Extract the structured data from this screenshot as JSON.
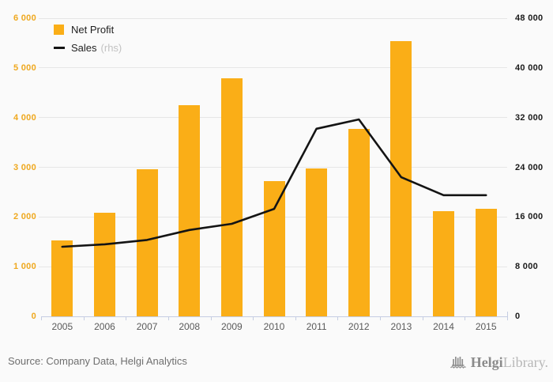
{
  "chart_data": {
    "type": "bar",
    "title": "",
    "categories": [
      "2005",
      "2006",
      "2007",
      "2008",
      "2009",
      "2010",
      "2011",
      "2012",
      "2013",
      "2014",
      "2015"
    ],
    "series": [
      {
        "name": "Net Profit",
        "type": "bar",
        "axis": "left",
        "color": "#FAAE17",
        "axis_note": "",
        "values": [
          1530,
          2080,
          2960,
          4250,
          4790,
          2720,
          2980,
          3770,
          5540,
          2120,
          2160
        ]
      },
      {
        "name": "Sales",
        "type": "line",
        "axis": "right",
        "color": "#141414",
        "axis_note": "(rhs)",
        "values": [
          11200,
          11600,
          12300,
          13900,
          14900,
          17300,
          30200,
          31700,
          22400,
          19500,
          19500
        ]
      }
    ],
    "left_axis": {
      "min": 0,
      "max": 6000,
      "label_color": "#EFA81E",
      "ticks": [
        "0",
        "1 000",
        "2 000",
        "3 000",
        "4 000",
        "5 000",
        "6 000"
      ]
    },
    "right_axis": {
      "min": 0,
      "max": 48000,
      "label_color": "#1a1a1a",
      "ticks": [
        "0",
        "8 000",
        "16 000",
        "24 000",
        "32 000",
        "40 000",
        "48 000"
      ]
    },
    "grid": true,
    "legend_position": "top-left"
  },
  "footer": {
    "source": "Source: Company Data, Helgi Analytics",
    "logo_helgi": "Helgi",
    "logo_library": "Library."
  }
}
